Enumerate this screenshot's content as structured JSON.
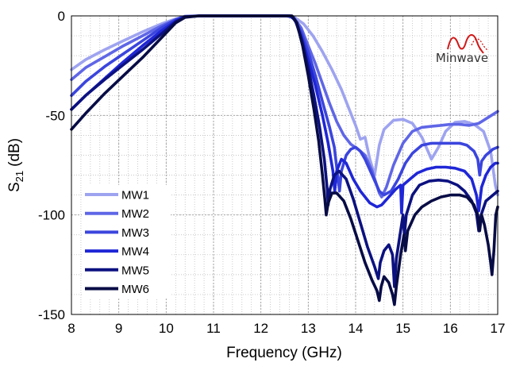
{
  "chart_data": {
    "type": "line",
    "title": "",
    "xlabel": "Frequency (GHz)",
    "ylabel_main": "S",
    "ylabel_sub": "21",
    "ylabel_unit": "(dB)",
    "xlim": [
      8,
      17
    ],
    "ylim": [
      -150,
      0
    ],
    "xticks": [
      8,
      9,
      10,
      11,
      12,
      13,
      14,
      15,
      16,
      17
    ],
    "yticks": [
      0,
      -50,
      -100,
      -150
    ],
    "grid": true,
    "minor_grid": "dotted",
    "legend_position": "lower-left",
    "logo_text": "Minwave",
    "series": [
      {
        "name": "MW1",
        "color": "#9ea3f0",
        "points": [
          [
            8,
            -27
          ],
          [
            8.3,
            -22
          ],
          [
            8.7,
            -17
          ],
          [
            9.1,
            -12.5
          ],
          [
            9.5,
            -8
          ],
          [
            9.9,
            -4
          ],
          [
            10.2,
            -1.5
          ],
          [
            10.4,
            -0.2
          ],
          [
            10.7,
            0
          ],
          [
            12.5,
            0
          ],
          [
            12.7,
            -0.5
          ],
          [
            12.9,
            -4
          ],
          [
            13.1,
            -10
          ],
          [
            13.3,
            -18
          ],
          [
            13.5,
            -27
          ],
          [
            13.7,
            -37
          ],
          [
            13.85,
            -46
          ],
          [
            14.0,
            -55
          ],
          [
            14.1,
            -62
          ],
          [
            14.2,
            -61
          ],
          [
            14.3,
            -72
          ],
          [
            14.4,
            -80
          ],
          [
            14.5,
            -65
          ],
          [
            14.6,
            -57
          ],
          [
            14.8,
            -52.5
          ],
          [
            15.0,
            -52
          ],
          [
            15.2,
            -54
          ],
          [
            15.4,
            -61
          ],
          [
            15.6,
            -72
          ],
          [
            15.75,
            -66
          ],
          [
            15.9,
            -58
          ],
          [
            16.1,
            -53.5
          ],
          [
            16.3,
            -53
          ],
          [
            16.5,
            -54.5
          ],
          [
            16.7,
            -58
          ],
          [
            16.85,
            -68
          ],
          [
            16.95,
            -85
          ],
          [
            17,
            -90
          ]
        ]
      },
      {
        "name": "MW2",
        "color": "#5f66e6",
        "points": [
          [
            8,
            -32
          ],
          [
            8.3,
            -26
          ],
          [
            8.7,
            -20.5
          ],
          [
            9.1,
            -15
          ],
          [
            9.5,
            -10
          ],
          [
            9.9,
            -5
          ],
          [
            10.2,
            -1.8
          ],
          [
            10.4,
            -0.2
          ],
          [
            10.7,
            0
          ],
          [
            12.55,
            0
          ],
          [
            12.7,
            -1
          ],
          [
            12.85,
            -6
          ],
          [
            13.0,
            -15
          ],
          [
            13.15,
            -24
          ],
          [
            13.3,
            -34
          ],
          [
            13.45,
            -44
          ],
          [
            13.6,
            -53
          ],
          [
            13.75,
            -60
          ],
          [
            13.9,
            -64.5
          ],
          [
            14.05,
            -67
          ],
          [
            14.2,
            -70
          ],
          [
            14.35,
            -78
          ],
          [
            14.5,
            -89
          ],
          [
            14.55,
            -91
          ],
          [
            14.65,
            -86
          ],
          [
            14.8,
            -75
          ],
          [
            15.0,
            -64
          ],
          [
            15.2,
            -58
          ],
          [
            15.4,
            -56
          ],
          [
            15.6,
            -55.5
          ],
          [
            15.8,
            -55
          ],
          [
            16.0,
            -54.5
          ],
          [
            16.2,
            -54.5
          ],
          [
            16.4,
            -55
          ],
          [
            16.6,
            -54
          ],
          [
            16.8,
            -51
          ],
          [
            17,
            -48
          ]
        ]
      },
      {
        "name": "MW3",
        "color": "#3b45dd",
        "points": [
          [
            8,
            -40
          ],
          [
            8.3,
            -33
          ],
          [
            8.7,
            -25.5
          ],
          [
            9.1,
            -19
          ],
          [
            9.5,
            -12.5
          ],
          [
            9.9,
            -6
          ],
          [
            10.2,
            -2
          ],
          [
            10.4,
            -0.3
          ],
          [
            10.7,
            0
          ],
          [
            12.6,
            0
          ],
          [
            12.7,
            -1.5
          ],
          [
            12.85,
            -8
          ],
          [
            13.0,
            -18
          ],
          [
            13.15,
            -30
          ],
          [
            13.3,
            -43
          ],
          [
            13.45,
            -56
          ],
          [
            13.55,
            -66
          ],
          [
            13.62,
            -80
          ],
          [
            13.66,
            -88
          ],
          [
            13.7,
            -78
          ],
          [
            13.8,
            -70
          ],
          [
            13.9,
            -67
          ],
          [
            14.0,
            -66
          ],
          [
            14.1,
            -68
          ],
          [
            14.2,
            -72
          ],
          [
            14.35,
            -80
          ],
          [
            14.5,
            -88
          ],
          [
            14.6,
            -90
          ],
          [
            14.75,
            -88
          ],
          [
            14.9,
            -82
          ],
          [
            15.05,
            -74
          ],
          [
            15.2,
            -69
          ],
          [
            15.4,
            -65
          ],
          [
            15.6,
            -64
          ],
          [
            15.8,
            -64
          ],
          [
            16.0,
            -64
          ],
          [
            16.2,
            -64
          ],
          [
            16.35,
            -65
          ],
          [
            16.5,
            -68
          ],
          [
            16.58,
            -72
          ],
          [
            16.62,
            -80
          ],
          [
            16.66,
            -73
          ],
          [
            16.75,
            -70
          ],
          [
            16.9,
            -67
          ],
          [
            17,
            -66
          ]
        ]
      },
      {
        "name": "MW4",
        "color": "#1f26d6",
        "points": [
          [
            8,
            -47
          ],
          [
            8.3,
            -40
          ],
          [
            8.7,
            -31.5
          ],
          [
            9.1,
            -23
          ],
          [
            9.5,
            -15
          ],
          [
            9.9,
            -7.5
          ],
          [
            10.2,
            -2.5
          ],
          [
            10.4,
            -0.4
          ],
          [
            10.7,
            0
          ],
          [
            12.62,
            0
          ],
          [
            12.72,
            -2
          ],
          [
            12.85,
            -10
          ],
          [
            13.0,
            -22
          ],
          [
            13.15,
            -35
          ],
          [
            13.3,
            -50
          ],
          [
            13.42,
            -64
          ],
          [
            13.52,
            -78
          ],
          [
            13.56,
            -88
          ],
          [
            13.6,
            -78
          ],
          [
            13.7,
            -72
          ],
          [
            13.8,
            -74
          ],
          [
            13.95,
            -82
          ],
          [
            14.1,
            -88
          ],
          [
            14.3,
            -94
          ],
          [
            14.45,
            -96
          ],
          [
            14.55,
            -95
          ],
          [
            14.7,
            -91
          ],
          [
            14.85,
            -87
          ],
          [
            14.95,
            -85
          ],
          [
            14.97,
            -99
          ],
          [
            15.0,
            -85
          ],
          [
            15.15,
            -82
          ],
          [
            15.3,
            -79
          ],
          [
            15.5,
            -77
          ],
          [
            15.7,
            -76
          ],
          [
            15.9,
            -76
          ],
          [
            16.1,
            -76.5
          ],
          [
            16.3,
            -78
          ],
          [
            16.45,
            -82
          ],
          [
            16.55,
            -90
          ],
          [
            16.6,
            -98
          ],
          [
            16.66,
            -86
          ],
          [
            16.75,
            -80
          ],
          [
            16.85,
            -76
          ],
          [
            16.95,
            -74
          ],
          [
            17,
            -74
          ]
        ]
      },
      {
        "name": "MW5",
        "color": "#0c1180",
        "points": [
          [
            8,
            -47
          ],
          [
            8.3,
            -40
          ],
          [
            8.7,
            -32
          ],
          [
            9.1,
            -24.5
          ],
          [
            9.5,
            -17
          ],
          [
            9.9,
            -9
          ],
          [
            10.2,
            -3
          ],
          [
            10.4,
            -0.5
          ],
          [
            10.7,
            0
          ],
          [
            12.64,
            0
          ],
          [
            12.74,
            -3
          ],
          [
            12.86,
            -12
          ],
          [
            13.0,
            -26
          ],
          [
            13.12,
            -40
          ],
          [
            13.24,
            -56
          ],
          [
            13.34,
            -72
          ],
          [
            13.4,
            -87
          ],
          [
            13.42,
            -95
          ],
          [
            13.46,
            -87
          ],
          [
            13.55,
            -80
          ],
          [
            13.65,
            -78
          ],
          [
            13.8,
            -82
          ],
          [
            13.95,
            -92
          ],
          [
            14.1,
            -104
          ],
          [
            14.25,
            -116
          ],
          [
            14.4,
            -126
          ],
          [
            14.48,
            -132
          ],
          [
            14.52,
            -124
          ],
          [
            14.6,
            -118
          ],
          [
            14.7,
            -115
          ],
          [
            14.78,
            -120
          ],
          [
            14.82,
            -136
          ],
          [
            14.86,
            -122
          ],
          [
            14.95,
            -108
          ],
          [
            15.0,
            -100
          ],
          [
            15.03,
            -110
          ],
          [
            15.07,
            -100
          ],
          [
            15.2,
            -90
          ],
          [
            15.35,
            -85
          ],
          [
            15.55,
            -83
          ],
          [
            15.75,
            -82.5
          ],
          [
            15.95,
            -83
          ],
          [
            16.15,
            -85
          ],
          [
            16.3,
            -88
          ],
          [
            16.45,
            -93
          ],
          [
            16.55,
            -99
          ],
          [
            16.6,
            -108
          ],
          [
            16.65,
            -100
          ],
          [
            16.75,
            -93
          ],
          [
            16.85,
            -91
          ],
          [
            16.95,
            -89
          ],
          [
            17,
            -88
          ]
        ]
      },
      {
        "name": "MW6",
        "color": "#080c45",
        "points": [
          [
            8,
            -57
          ],
          [
            8.3,
            -49
          ],
          [
            8.7,
            -39
          ],
          [
            9.1,
            -30
          ],
          [
            9.5,
            -21
          ],
          [
            9.9,
            -11
          ],
          [
            10.2,
            -3.5
          ],
          [
            10.4,
            -0.7
          ],
          [
            10.7,
            0
          ],
          [
            12.66,
            0
          ],
          [
            12.76,
            -3.5
          ],
          [
            12.88,
            -15
          ],
          [
            13.0,
            -30
          ],
          [
            13.12,
            -47
          ],
          [
            13.22,
            -63
          ],
          [
            13.3,
            -80
          ],
          [
            13.35,
            -92
          ],
          [
            13.38,
            -100
          ],
          [
            13.42,
            -94
          ],
          [
            13.5,
            -89
          ],
          [
            13.6,
            -89
          ],
          [
            13.75,
            -93
          ],
          [
            13.9,
            -102
          ],
          [
            14.05,
            -113
          ],
          [
            14.2,
            -124
          ],
          [
            14.35,
            -133
          ],
          [
            14.45,
            -138
          ],
          [
            14.5,
            -143
          ],
          [
            14.54,
            -136
          ],
          [
            14.6,
            -131
          ],
          [
            14.7,
            -134
          ],
          [
            14.78,
            -140
          ],
          [
            14.82,
            -145
          ],
          [
            14.86,
            -136
          ],
          [
            14.95,
            -120
          ],
          [
            15.02,
            -110
          ],
          [
            15.05,
            -118
          ],
          [
            15.1,
            -108
          ],
          [
            15.25,
            -100
          ],
          [
            15.4,
            -96
          ],
          [
            15.6,
            -93
          ],
          [
            15.8,
            -91
          ],
          [
            16.0,
            -90
          ],
          [
            16.2,
            -90
          ],
          [
            16.35,
            -91
          ],
          [
            16.5,
            -95
          ],
          [
            16.58,
            -100
          ],
          [
            16.62,
            -108
          ],
          [
            16.66,
            -100
          ],
          [
            16.72,
            -105
          ],
          [
            16.8,
            -115
          ],
          [
            16.85,
            -124
          ],
          [
            16.88,
            -130
          ],
          [
            16.92,
            -118
          ],
          [
            16.96,
            -100
          ],
          [
            17,
            -96
          ]
        ]
      }
    ]
  }
}
